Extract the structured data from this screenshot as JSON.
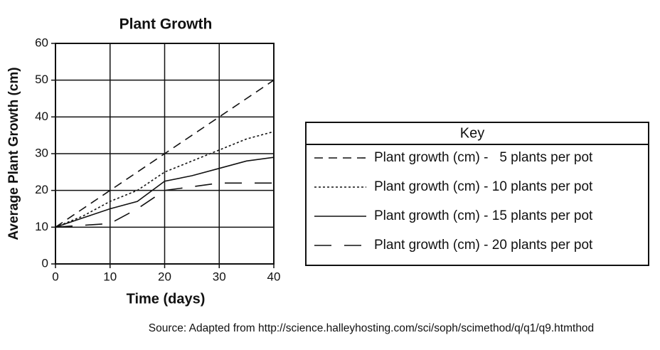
{
  "chart_data": {
    "type": "line",
    "title": "Plant Growth",
    "x_label": "Time (days)",
    "y_label": "Average Plant Growth (cm)",
    "legend_title": "Key",
    "source": "Source: Adapted from http://science.halleyhosting.com/sci/soph/scimethod/q/q1/q9.htmthod",
    "x": [
      0,
      5,
      10,
      15,
      20,
      25,
      30,
      35,
      40
    ],
    "series": [
      {
        "name": "Plant growth (cm) -   5 plants per pot",
        "color": "#111111",
        "dash": "12 8",
        "values": [
          10,
          15,
          20,
          25,
          30,
          35,
          40,
          45,
          50
        ]
      },
      {
        "name": "Plant growth (cm) - 10 plants per pot",
        "color": "#111111",
        "dash": "3 3",
        "values": [
          10,
          13,
          17,
          20,
          25,
          28,
          31,
          34,
          36
        ]
      },
      {
        "name": "Plant growth (cm) - 15 plants per pot",
        "color": "#111111",
        "dash": "",
        "values": [
          10,
          12.5,
          15,
          17,
          22.5,
          24,
          26,
          28,
          29
        ]
      },
      {
        "name": "Plant growth (cm) - 20 plants per pot",
        "color": "#111111",
        "dash": "24 18",
        "values": [
          10,
          10.5,
          11,
          15,
          20,
          21,
          22,
          22,
          22
        ]
      }
    ],
    "xlim": [
      0,
      40
    ],
    "xticks": [
      0,
      10,
      20,
      30,
      40
    ],
    "ylim": [
      0,
      60
    ],
    "yticks": [
      0,
      10,
      20,
      30,
      40,
      50,
      60
    ],
    "grid": true
  }
}
